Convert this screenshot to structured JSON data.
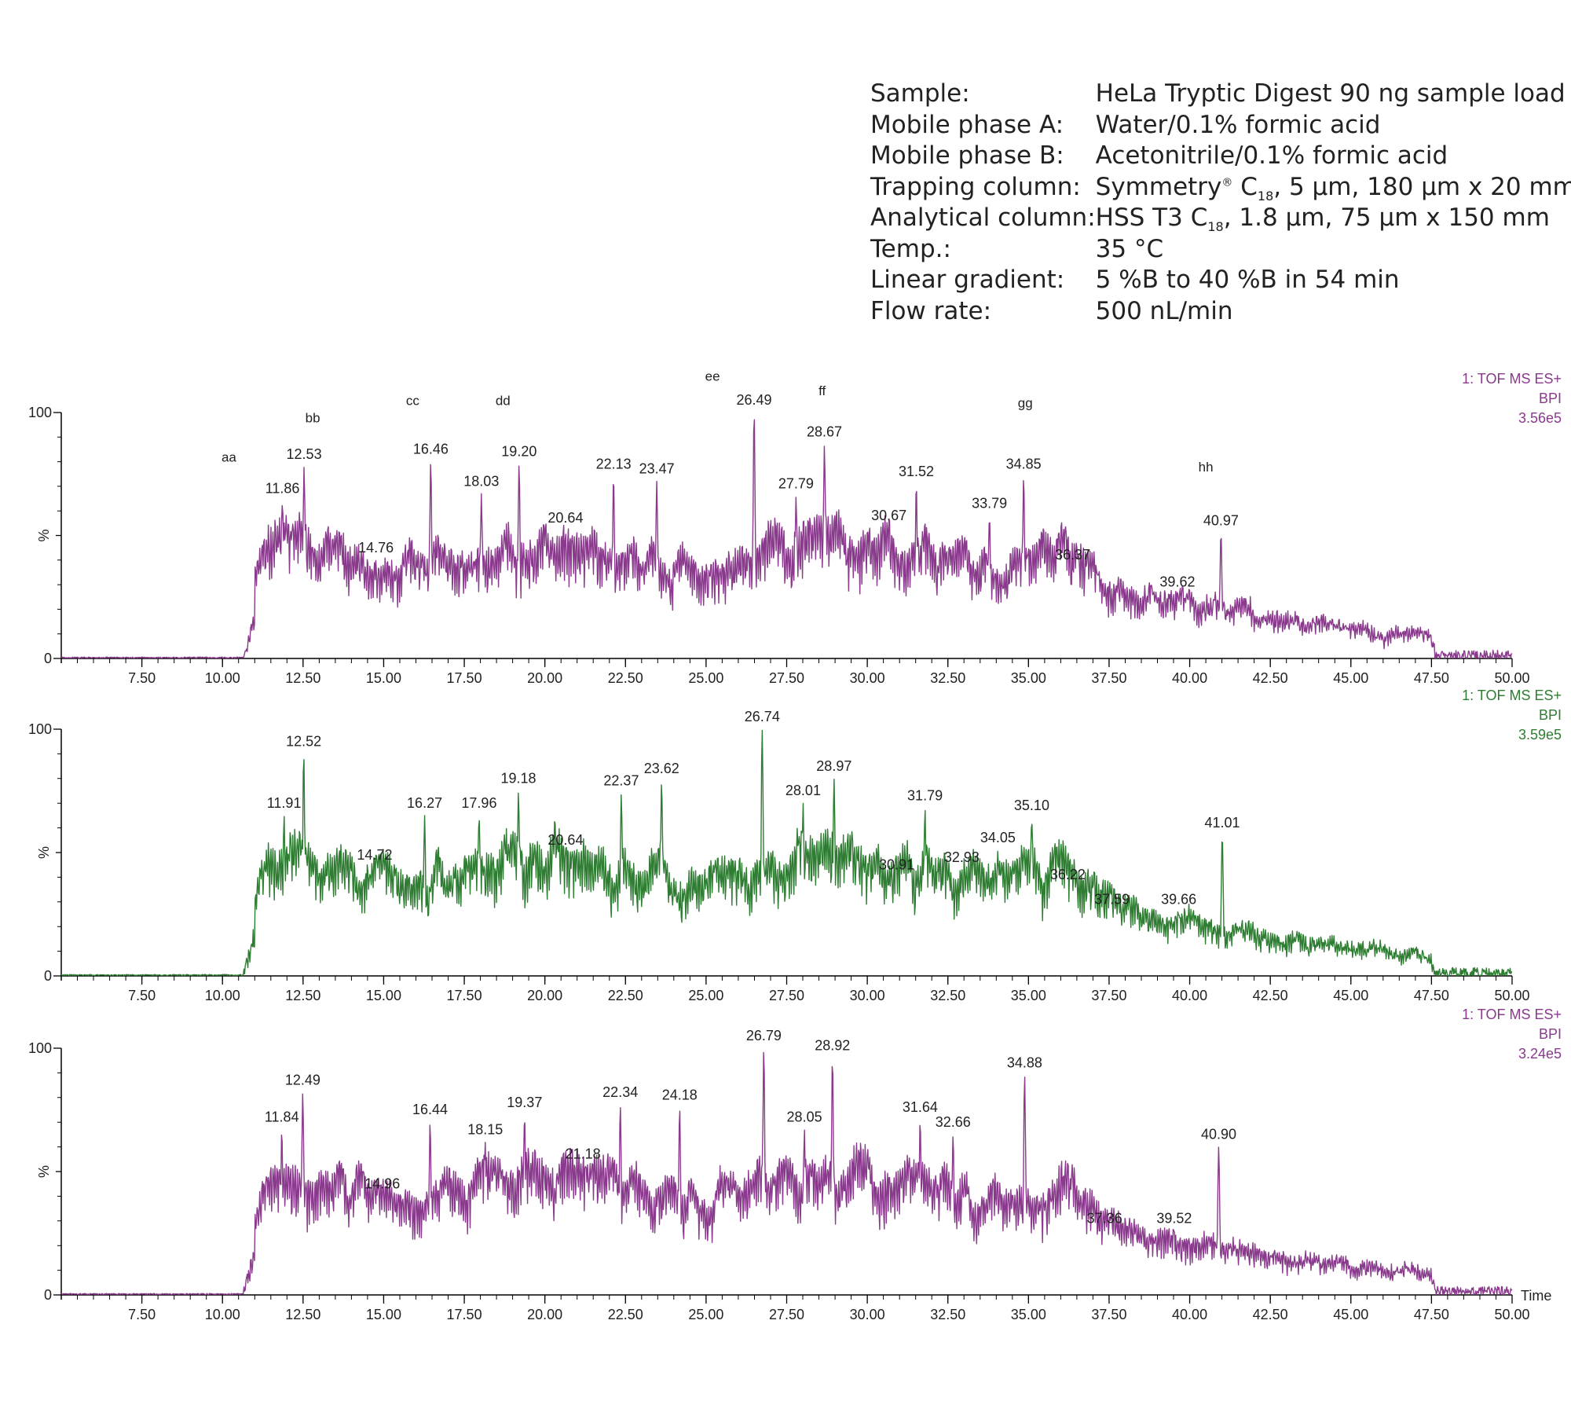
{
  "conditions": [
    {
      "label": "Sample:",
      "value": "HeLa Tryptic Digest 90 ng sample load"
    },
    {
      "label": "Mobile phase A:",
      "value": "Water/0.1% formic acid"
    },
    {
      "label": "Mobile phase B:",
      "value": "Acetonitrile/0.1% formic acid"
    },
    {
      "label": "Trapping column:",
      "value": "Symmetry® C18, 5 µm, 180 µm x 20 mm",
      "rich": "Symmetry<sup>®</sup> C<sub>18</sub>, 5 µm, 180 µm x 20 mm"
    },
    {
      "label": "Analytical column:",
      "value": "HSS T3 C18, 1.8 µm, 75 µm x 150 mm",
      "rich": "HSS T3 C<sub>18</sub>, 1.8 µm, 75 µm x 150 mm"
    },
    {
      "label": "Temp.:",
      "value": "35 °C"
    },
    {
      "label": "Linear gradient:",
      "value": "5 %B to 40 %B in 54 min"
    },
    {
      "label": "Flow rate:",
      "value": "500 nL/min"
    }
  ],
  "chart_data": [
    {
      "type": "line",
      "color": "#8a3a8c",
      "xlim": [
        5,
        50
      ],
      "ylim": [
        0,
        100
      ],
      "ylabel": "%",
      "xlabel": "",
      "x_ticks": [
        "7.50",
        "10.00",
        "12.50",
        "15.00",
        "17.50",
        "20.00",
        "22.50",
        "25.00",
        "27.50",
        "30.00",
        "32.50",
        "35.00",
        "37.50",
        "40.00",
        "42.50",
        "45.00",
        "47.50",
        "50.00"
      ],
      "y_ticks": [
        "0",
        "100"
      ],
      "info": [
        "1: TOF MS ES+",
        "BPI",
        "3.56e5"
      ],
      "peaks": [
        {
          "x": 11.86,
          "y": 64
        },
        {
          "x": 12.53,
          "y": 78
        },
        {
          "x": 14.76,
          "y": 40
        },
        {
          "x": 16.46,
          "y": 80
        },
        {
          "x": 18.03,
          "y": 67
        },
        {
          "x": 19.2,
          "y": 79
        },
        {
          "x": 20.64,
          "y": 52
        },
        {
          "x": 22.13,
          "y": 74
        },
        {
          "x": 23.47,
          "y": 72
        },
        {
          "x": 26.49,
          "y": 100
        },
        {
          "x": 27.79,
          "y": 66
        },
        {
          "x": 28.67,
          "y": 87
        },
        {
          "x": 30.67,
          "y": 53
        },
        {
          "x": 31.52,
          "y": 71
        },
        {
          "x": 33.79,
          "y": 58
        },
        {
          "x": 34.85,
          "y": 74
        },
        {
          "x": 36.37,
          "y": 37
        },
        {
          "x": 39.62,
          "y": 26
        },
        {
          "x": 40.97,
          "y": 51
        }
      ],
      "annotations": [
        {
          "text": "aa",
          "x": 10.2,
          "y": 80
        },
        {
          "text": "bb",
          "x": 12.8,
          "y": 96
        },
        {
          "text": "cc",
          "x": 15.9,
          "y": 103
        },
        {
          "text": "dd",
          "x": 18.7,
          "y": 103
        },
        {
          "text": "ee",
          "x": 25.2,
          "y": 113
        },
        {
          "text": "ff",
          "x": 28.6,
          "y": 107
        },
        {
          "text": "gg",
          "x": 34.9,
          "y": 102
        },
        {
          "text": "hh",
          "x": 40.5,
          "y": 76
        }
      ]
    },
    {
      "type": "line",
      "color": "#2e7d32",
      "xlim": [
        5,
        50
      ],
      "ylim": [
        0,
        100
      ],
      "ylabel": "%",
      "xlabel": "",
      "x_ticks": [
        "7.50",
        "10.00",
        "12.50",
        "15.00",
        "17.50",
        "20.00",
        "22.50",
        "25.00",
        "27.50",
        "30.00",
        "32.50",
        "35.00",
        "37.50",
        "40.00",
        "42.50",
        "45.00",
        "47.50",
        "50.00"
      ],
      "y_ticks": [
        "0",
        "100"
      ],
      "info": [
        "1: TOF MS ES+",
        "BPI",
        "3.59e5"
      ],
      "peaks": [
        {
          "x": 11.91,
          "y": 65
        },
        {
          "x": 12.52,
          "y": 90
        },
        {
          "x": 14.72,
          "y": 44
        },
        {
          "x": 16.27,
          "y": 65
        },
        {
          "x": 17.96,
          "y": 65
        },
        {
          "x": 19.18,
          "y": 75
        },
        {
          "x": 20.64,
          "y": 50
        },
        {
          "x": 22.37,
          "y": 74
        },
        {
          "x": 23.62,
          "y": 79
        },
        {
          "x": 26.74,
          "y": 100
        },
        {
          "x": 28.01,
          "y": 70
        },
        {
          "x": 28.97,
          "y": 80
        },
        {
          "x": 30.91,
          "y": 40
        },
        {
          "x": 31.79,
          "y": 68
        },
        {
          "x": 32.93,
          "y": 43
        },
        {
          "x": 34.05,
          "y": 51
        },
        {
          "x": 35.1,
          "y": 64
        },
        {
          "x": 36.22,
          "y": 36
        },
        {
          "x": 37.59,
          "y": 26
        },
        {
          "x": 39.66,
          "y": 26
        },
        {
          "x": 41.01,
          "y": 57
        }
      ],
      "annotations": []
    },
    {
      "type": "line",
      "color": "#8a3a8c",
      "xlim": [
        5,
        50
      ],
      "ylim": [
        0,
        100
      ],
      "ylabel": "%",
      "xlabel": "Time",
      "x_ticks": [
        "7.50",
        "10.00",
        "12.50",
        "15.00",
        "17.50",
        "20.00",
        "22.50",
        "25.00",
        "27.50",
        "30.00",
        "32.50",
        "35.00",
        "37.50",
        "40.00",
        "42.50",
        "45.00",
        "47.50",
        "50.00"
      ],
      "y_ticks": [
        "0",
        "100"
      ],
      "info": [
        "1: TOF MS ES+",
        "BPI",
        "3.24e5"
      ],
      "peaks": [
        {
          "x": 11.84,
          "y": 67
        },
        {
          "x": 12.49,
          "y": 82
        },
        {
          "x": 14.96,
          "y": 40
        },
        {
          "x": 16.44,
          "y": 70
        },
        {
          "x": 18.15,
          "y": 62
        },
        {
          "x": 19.37,
          "y": 73
        },
        {
          "x": 21.18,
          "y": 52
        },
        {
          "x": 22.34,
          "y": 77
        },
        {
          "x": 24.18,
          "y": 76
        },
        {
          "x": 26.79,
          "y": 100
        },
        {
          "x": 28.05,
          "y": 67
        },
        {
          "x": 28.92,
          "y": 96
        },
        {
          "x": 31.64,
          "y": 71
        },
        {
          "x": 32.66,
          "y": 65
        },
        {
          "x": 34.88,
          "y": 89
        },
        {
          "x": 37.36,
          "y": 26
        },
        {
          "x": 39.52,
          "y": 26
        },
        {
          "x": 40.9,
          "y": 60
        }
      ],
      "annotations": []
    }
  ]
}
